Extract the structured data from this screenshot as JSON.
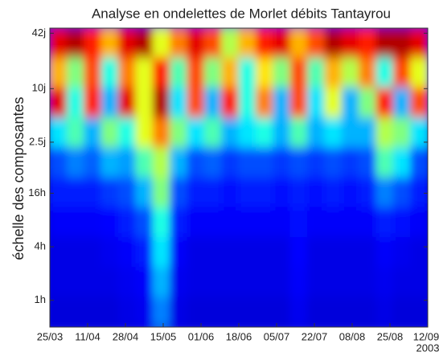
{
  "chart_data": {
    "type": "heatmap",
    "title": "Analyse en ondelettes de Morlet débits Tantayrou",
    "y_label": "échelle des composantes",
    "x": [
      "25/03",
      "11/04",
      "28/04",
      "15/05",
      "01/06",
      "18/06",
      "05/07",
      "22/07",
      "08/08",
      "25/08",
      "12/09"
    ],
    "year": "2003",
    "log_y": true,
    "ylim": [
      0.5,
      1150
    ],
    "yticks": [
      {
        "value": 1008,
        "label": "42j"
      },
      {
        "value": 240,
        "label": "10j"
      },
      {
        "value": 60,
        "label": "2.5j"
      },
      {
        "value": 16,
        "label": "16h"
      },
      {
        "value": 4,
        "label": "4h"
      },
      {
        "value": 1,
        "label": "1h"
      }
    ],
    "colormap": "jet",
    "z": [
      [
        0.9,
        0.95,
        0.85,
        0.7,
        0.9,
        0.95,
        0.6,
        0.75,
        0.9,
        0.8,
        0.55,
        0.7,
        0.85,
        0.9,
        0.7,
        0.8,
        0.95,
        0.9,
        0.85,
        0.95,
        0.95,
        0.9
      ],
      [
        0.7,
        0.5,
        0.8,
        0.4,
        0.75,
        0.6,
        0.85,
        0.45,
        0.8,
        0.5,
        0.7,
        0.4,
        0.65,
        0.5,
        0.8,
        0.45,
        0.7,
        0.55,
        0.75,
        0.4,
        0.8,
        0.6
      ],
      [
        0.9,
        0.4,
        0.85,
        0.3,
        0.9,
        0.6,
        0.95,
        0.35,
        0.8,
        0.3,
        0.85,
        0.4,
        0.75,
        0.3,
        0.8,
        0.35,
        0.6,
        0.3,
        0.5,
        0.85,
        0.3,
        0.8
      ],
      [
        0.35,
        0.45,
        0.3,
        0.5,
        0.4,
        0.6,
        0.75,
        0.5,
        0.35,
        0.45,
        0.3,
        0.35,
        0.4,
        0.3,
        0.45,
        0.3,
        0.35,
        0.3,
        0.3,
        0.55,
        0.5,
        0.35
      ],
      [
        0.2,
        0.25,
        0.22,
        0.3,
        0.28,
        0.45,
        0.55,
        0.3,
        0.2,
        0.22,
        0.18,
        0.2,
        0.2,
        0.18,
        0.2,
        0.18,
        0.2,
        0.18,
        0.2,
        0.45,
        0.35,
        0.2
      ],
      [
        0.15,
        0.15,
        0.15,
        0.18,
        0.2,
        0.3,
        0.5,
        0.2,
        0.15,
        0.15,
        0.14,
        0.15,
        0.15,
        0.14,
        0.15,
        0.14,
        0.15,
        0.14,
        0.15,
        0.25,
        0.2,
        0.15
      ],
      [
        0.12,
        0.12,
        0.12,
        0.13,
        0.15,
        0.2,
        0.4,
        0.15,
        0.12,
        0.12,
        0.12,
        0.12,
        0.12,
        0.12,
        0.14,
        0.12,
        0.12,
        0.12,
        0.12,
        0.15,
        0.14,
        0.12
      ],
      [
        0.1,
        0.1,
        0.1,
        0.11,
        0.12,
        0.15,
        0.35,
        0.12,
        0.1,
        0.1,
        0.1,
        0.1,
        0.1,
        0.1,
        0.13,
        0.1,
        0.1,
        0.1,
        0.1,
        0.12,
        0.11,
        0.1
      ],
      [
        0.1,
        0.1,
        0.1,
        0.1,
        0.11,
        0.12,
        0.3,
        0.11,
        0.1,
        0.1,
        0.1,
        0.1,
        0.1,
        0.1,
        0.12,
        0.1,
        0.1,
        0.1,
        0.1,
        0.11,
        0.1,
        0.1
      ],
      [
        0.09,
        0.09,
        0.09,
        0.09,
        0.1,
        0.11,
        0.25,
        0.1,
        0.09,
        0.09,
        0.09,
        0.09,
        0.09,
        0.09,
        0.11,
        0.09,
        0.09,
        0.09,
        0.09,
        0.1,
        0.09,
        0.09
      ]
    ]
  }
}
